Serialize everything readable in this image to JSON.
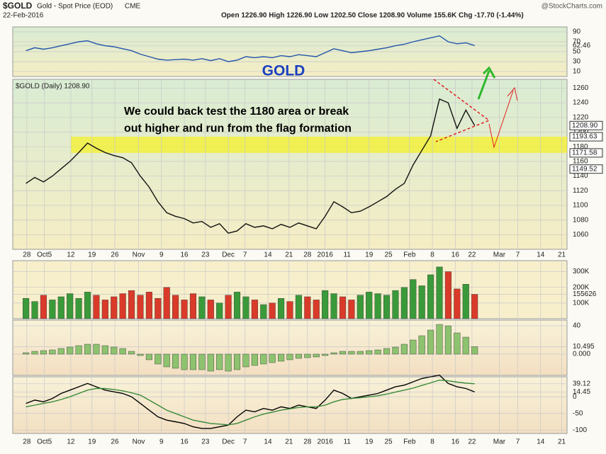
{
  "header": {
    "symbol": "$GOLD",
    "name": "Gold - Spot Price (EOD)",
    "exchange": "CME",
    "date": "22-Feb-2016",
    "quote": "Open 1226.90 High 1226.90 Low 1202.50 Close 1208.90 Volume 155.6K Chg -17.70 (-1.44%)",
    "brand": "@StockCharts.com"
  },
  "annotations": {
    "title": "GOLD",
    "note": [
      "We could back test the 1180 area or break",
      "out higher and run from the flag formation"
    ]
  },
  "chart_data": [
    {
      "type": "line",
      "color": "#2255aa",
      "ylim": [
        0,
        100
      ],
      "yticks": [
        90,
        70,
        62.46,
        50,
        30,
        10
      ],
      "values": [
        52,
        58,
        55,
        58,
        62,
        66,
        70,
        72,
        66,
        62,
        60,
        56,
        52,
        45,
        40,
        35,
        33,
        34,
        35,
        33,
        36,
        32,
        36,
        30,
        33,
        40,
        38,
        40,
        38,
        42,
        40,
        44,
        42,
        40,
        48,
        56,
        52,
        48,
        50,
        52,
        55,
        58,
        62,
        65,
        70,
        74,
        78,
        82,
        70,
        66,
        68,
        62.46
      ]
    },
    {
      "type": "line",
      "title": "$GOLD (Daily) 1208.90",
      "color": "#111111",
      "band_color": "#f4f02a",
      "ylim": [
        1040,
        1272
      ],
      "yticks": [
        1060,
        1080,
        1100,
        1120,
        1140,
        1160,
        1180,
        1200,
        1220,
        1240,
        1260
      ],
      "levels": [
        {
          "value": 1208.9,
          "label": "1208.90"
        },
        1193.63,
        1171.58,
        1149.52
      ],
      "xlim": [
        -1.5,
        61.5
      ],
      "xticks": [
        {
          "value": 0.1,
          "label": "28"
        },
        {
          "value": 2.1,
          "label": "Oct5"
        },
        {
          "value": 5.1,
          "label": "12"
        },
        {
          "value": 7.5,
          "label": "19"
        },
        {
          "value": 10.1,
          "label": "26"
        },
        {
          "value": 12.8,
          "label": "Nov"
        },
        {
          "value": 15.4,
          "label": "9"
        },
        {
          "value": 18,
          "label": "16"
        },
        {
          "value": 20.4,
          "label": "23"
        },
        {
          "value": 23,
          "label": "Dec"
        },
        {
          "value": 24.9,
          "label": "7"
        },
        {
          "value": 27.5,
          "label": "14"
        },
        {
          "value": 29.9,
          "label": "21"
        },
        {
          "value": 32,
          "label": "28"
        },
        {
          "value": 34,
          "label": "2016"
        },
        {
          "value": 36.5,
          "label": "11"
        },
        {
          "value": 39,
          "label": "19"
        },
        {
          "value": 41.2,
          "label": "25"
        },
        {
          "value": 43.6,
          "label": "Feb"
        },
        {
          "value": 46.2,
          "label": "8"
        },
        {
          "value": 48.8,
          "label": "16"
        },
        {
          "value": 50.7,
          "label": "22"
        },
        {
          "value": 53.8,
          "label": "Mar"
        },
        {
          "value": 55.9,
          "label": "7"
        },
        {
          "value": 58.5,
          "label": "14"
        },
        {
          "value": 60.9,
          "label": "21"
        }
      ],
      "values": [
        1130,
        1138,
        1132,
        1140,
        1150,
        1160,
        1172,
        1185,
        1178,
        1172,
        1168,
        1165,
        1158,
        1140,
        1125,
        1105,
        1090,
        1085,
        1082,
        1076,
        1078,
        1070,
        1075,
        1062,
        1065,
        1075,
        1070,
        1072,
        1068,
        1074,
        1070,
        1076,
        1072,
        1068,
        1085,
        1105,
        1098,
        1090,
        1092,
        1098,
        1105,
        1112,
        1122,
        1130,
        1155,
        1175,
        1195,
        1245,
        1240,
        1205,
        1230,
        1208.9
      ]
    },
    {
      "type": "bar",
      "colors": {
        "up": "#3a9a3a",
        "down": "#d93a2a"
      },
      "ylim": [
        0,
        370000
      ],
      "yticks": [
        {
          "value": 300000,
          "label": "300K"
        },
        {
          "value": 200000,
          "label": "200K"
        },
        155626,
        {
          "value": 100000,
          "label": "100K"
        }
      ],
      "values": [
        130000,
        110000,
        150000,
        120000,
        140000,
        160000,
        130000,
        170000,
        150000,
        120000,
        140000,
        160000,
        180000,
        150000,
        170000,
        130000,
        200000,
        150000,
        120000,
        160000,
        140000,
        120000,
        100000,
        150000,
        170000,
        140000,
        120000,
        90000,
        100000,
        130000,
        110000,
        150000,
        140000,
        120000,
        180000,
        160000,
        140000,
        120000,
        150000,
        170000,
        160000,
        150000,
        180000,
        200000,
        250000,
        210000,
        280000,
        330000,
        300000,
        190000,
        220000,
        155626
      ]
    },
    {
      "type": "bar",
      "color": "#8dc26f",
      "ylim": [
        -30,
        48
      ],
      "yticks": [
        40,
        10.495,
        {
          "value": 0,
          "label": "0.000"
        }
      ],
      "values": [
        2,
        4,
        5,
        6,
        8,
        10,
        12,
        14,
        14,
        12,
        10,
        8,
        4,
        -2,
        -8,
        -14,
        -18,
        -20,
        -22,
        -22,
        -22,
        -24,
        -22,
        -24,
        -22,
        -18,
        -16,
        -14,
        -12,
        -10,
        -8,
        -6,
        -5,
        -4,
        -2,
        2,
        4,
        4,
        4,
        5,
        6,
        8,
        10,
        14,
        20,
        26,
        34,
        42,
        40,
        30,
        24,
        10.495
      ]
    },
    {
      "type": "line",
      "ylim": [
        -110,
        60
      ],
      "yticks": [
        39.12,
        14.45,
        0,
        -50,
        -100
      ],
      "series": [
        {
          "color": "#000000",
          "values": [
            -20,
            -10,
            -15,
            -5,
            10,
            20,
            30,
            40,
            30,
            20,
            15,
            10,
            0,
            -20,
            -40,
            -60,
            -70,
            -75,
            -80,
            -90,
            -95,
            -95,
            -90,
            -85,
            -60,
            -40,
            -45,
            -35,
            -40,
            -30,
            -35,
            -25,
            -30,
            -35,
            -10,
            20,
            10,
            -5,
            0,
            5,
            10,
            20,
            30,
            35,
            45,
            55,
            60,
            65,
            40,
            30,
            25,
            14.45
          ]
        },
        {
          "color": "#3a8a3a",
          "values": [
            -30,
            -25,
            -20,
            -15,
            -8,
            0,
            10,
            20,
            25,
            25,
            22,
            18,
            12,
            5,
            -10,
            -25,
            -40,
            -50,
            -60,
            -70,
            -75,
            -80,
            -82,
            -84,
            -80,
            -70,
            -60,
            -52,
            -46,
            -40,
            -36,
            -32,
            -30,
            -30,
            -25,
            -15,
            -8,
            -5,
            -3,
            0,
            3,
            8,
            14,
            20,
            26,
            34,
            42,
            50,
            48,
            44,
            41,
            39.12
          ]
        }
      ]
    }
  ]
}
